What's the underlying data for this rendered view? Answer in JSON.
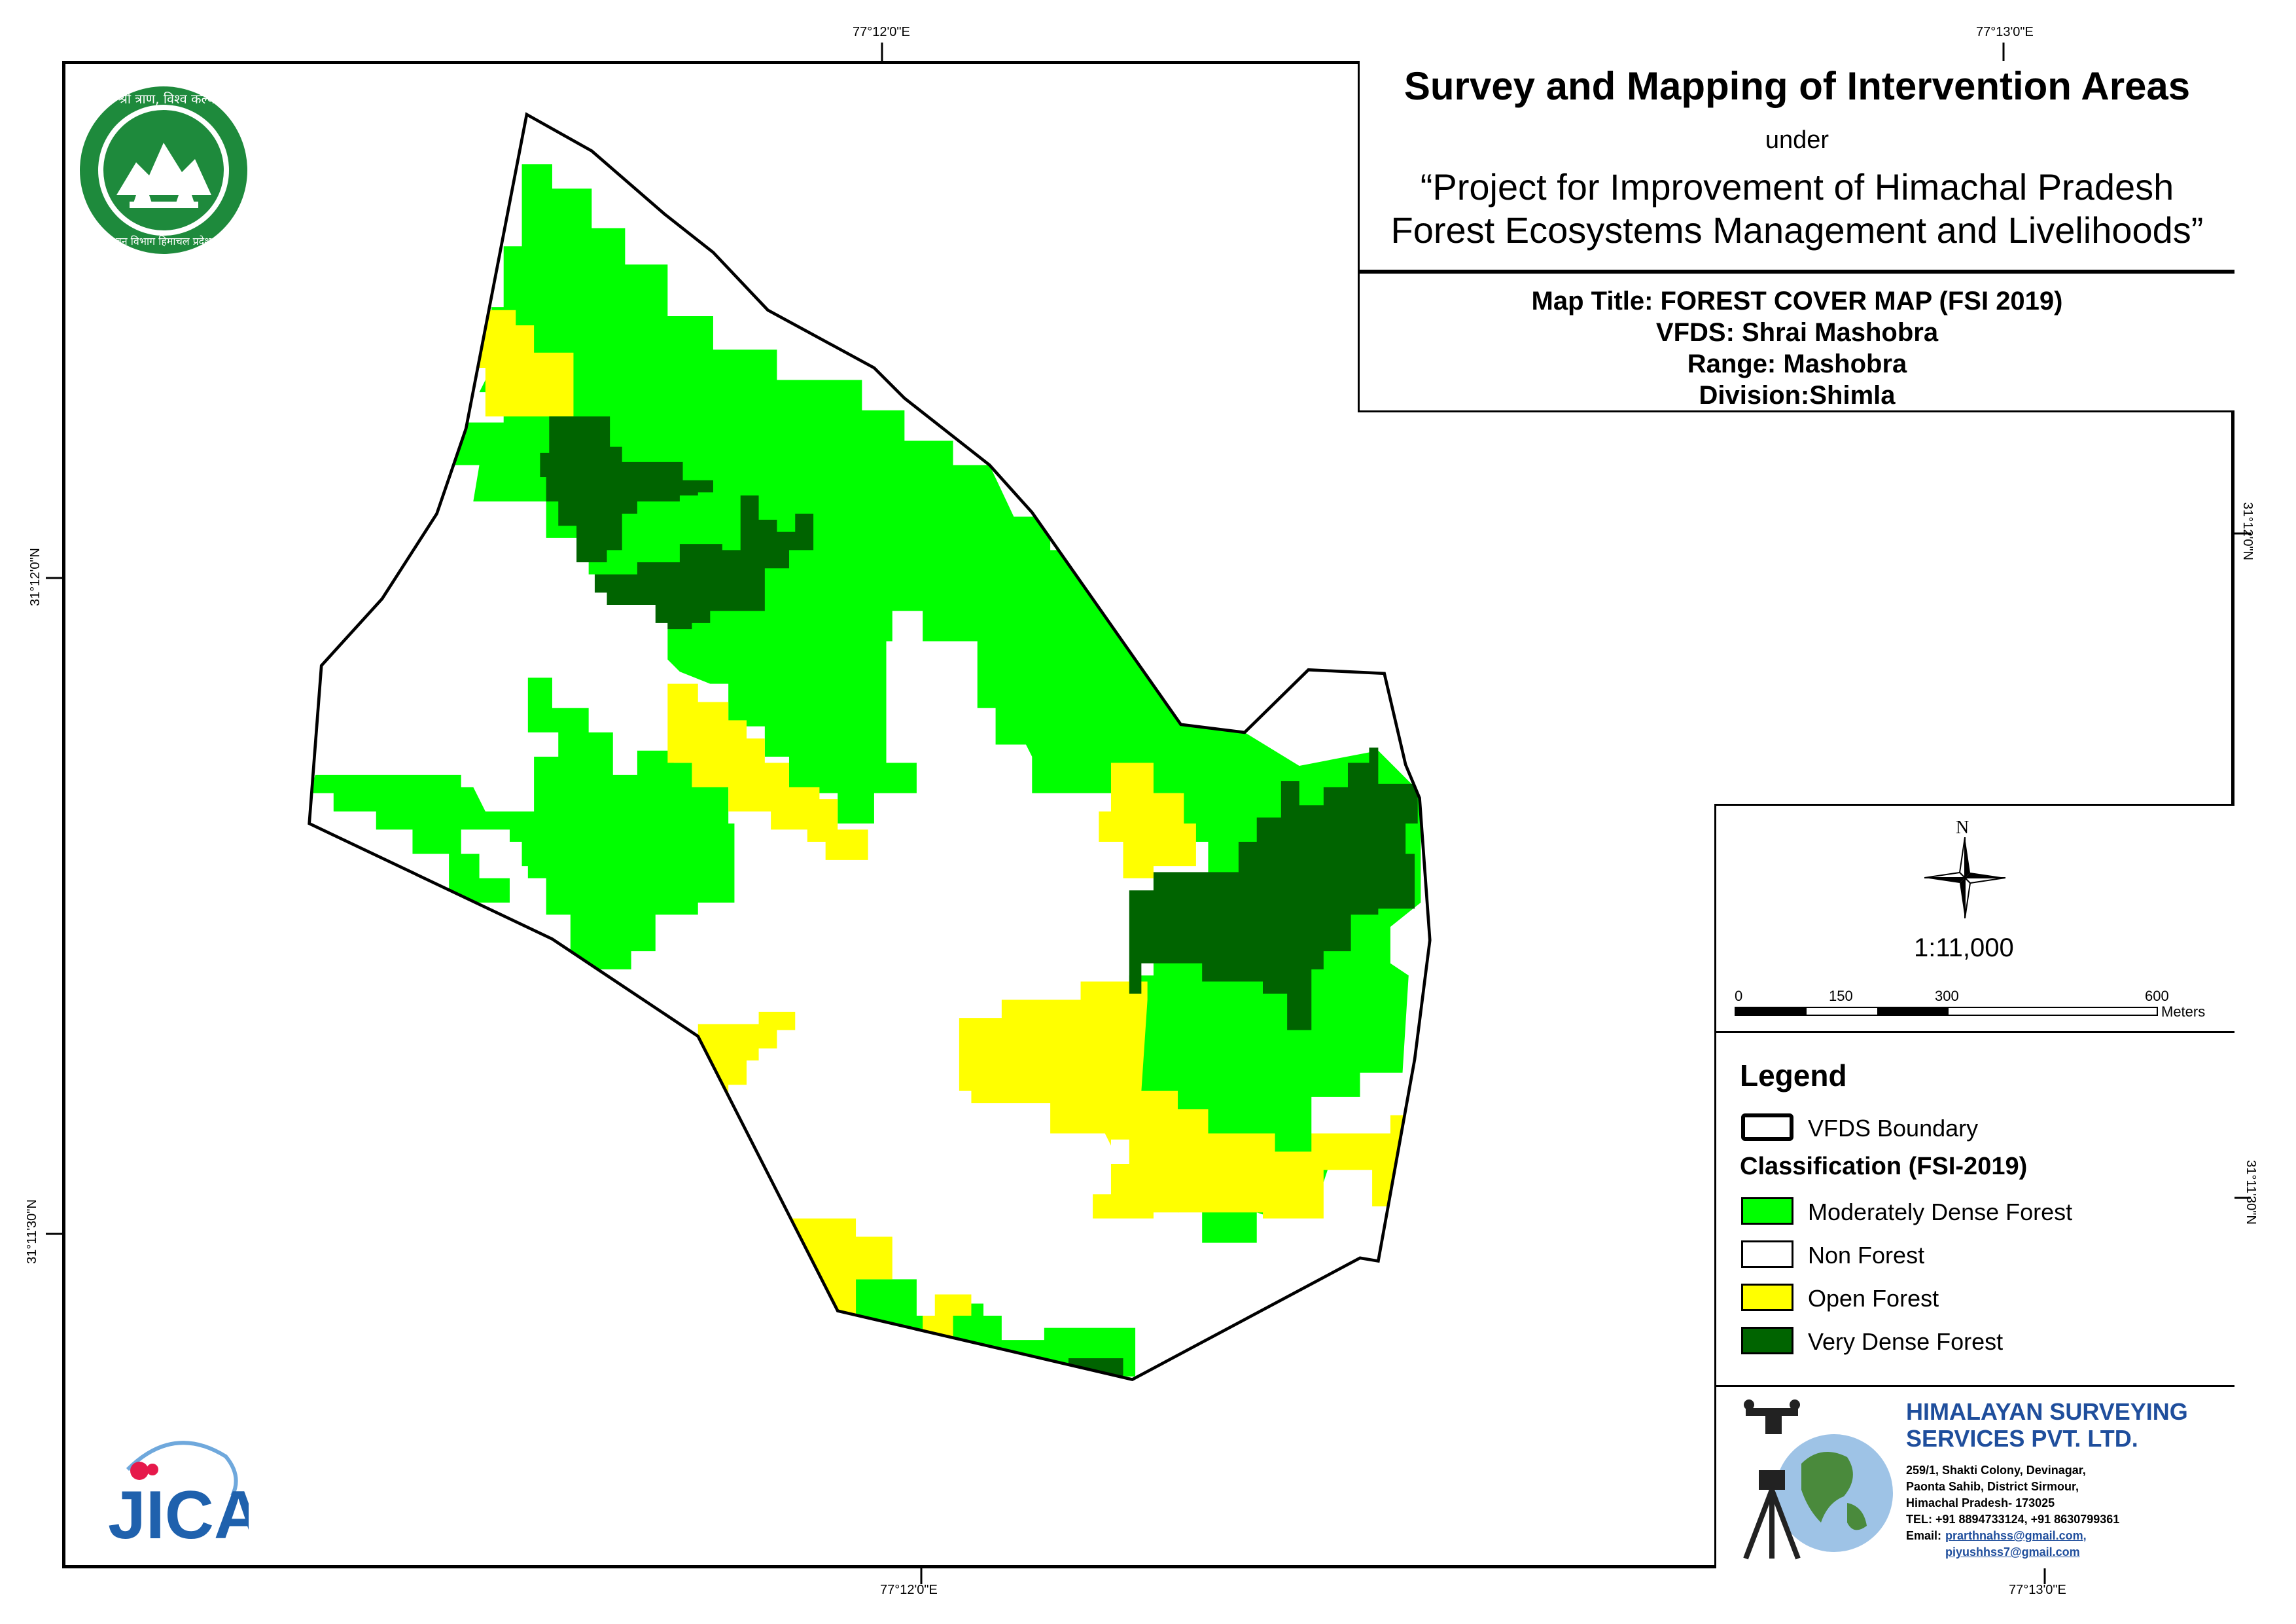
{
  "coordinates": {
    "top_left_lon": "77°12'0\"E",
    "top_right_lon": "77°13'0\"E",
    "bottom_left_lon": "77°12'0\"E",
    "bottom_right_lon": "77°13'0\"E",
    "left_upper_lat": "31°12'0\"N",
    "left_lower_lat": "31°11'30\"N",
    "right_upper_lat": "31°12'0\"N",
    "right_lower_lat": "31°11'30\"N"
  },
  "title": {
    "main": "Survey and Mapping of Intervention Areas",
    "under": "under",
    "project_line1": "“Project for Improvement of Himachal Pradesh",
    "project_line2": "Forest Ecosystems Management and Livelihoods”"
  },
  "map_info": {
    "map_title": "Map Title: FOREST COVER MAP (FSI 2019)",
    "vfds": "VFDS: Shrai Mashobra",
    "range": "Range: Mashobra",
    "division": "Division:Shimla"
  },
  "north_arrow": {
    "label": "N",
    "icon": "north-arrow-icon"
  },
  "scale": {
    "ratio": "1:11,000",
    "ticks": [
      "0",
      "150",
      "300",
      "600"
    ],
    "unit": "Meters"
  },
  "legend": {
    "title": "Legend",
    "boundary_label": "VFDS Boundary",
    "classification_title": "Classification (FSI-2019)",
    "items": [
      {
        "label": "Moderately Dense Forest",
        "color": "#00ff00"
      },
      {
        "label": "Non Forest",
        "color": "#ffffff"
      },
      {
        "label": "Open Forest",
        "color": "#ffff00"
      },
      {
        "label": "Very Dense Forest",
        "color": "#006400"
      }
    ]
  },
  "company": {
    "name_line1": "HIMALAYAN SURVEYING",
    "name_line2": "SERVICES PVT. LTD.",
    "address1": "259/1, Shakti Colony, Devinagar,",
    "address2": "Paonta Sahib, District Sirmour,",
    "address3": "Himachal Pradesh- 173025",
    "tel": "TEL: +91 8894733124, +91 8630799361",
    "email_label": "Email:",
    "email1": "prarthnahss@gmail.com,",
    "email2": "piyushhss7@gmail.com",
    "accent_color": "#1f4e9c"
  },
  "logos": {
    "hp_forest_text_top": "वन श्री त्राण, विश्व कल्याण",
    "hp_forest_text_bottom": "वन विभाग हिमाचल प्रदेश",
    "jica": "JICA"
  },
  "colors": {
    "moderately_dense": "#00ff00",
    "very_dense": "#006400",
    "open_forest": "#ffff00",
    "non_forest": "#ffffff"
  }
}
